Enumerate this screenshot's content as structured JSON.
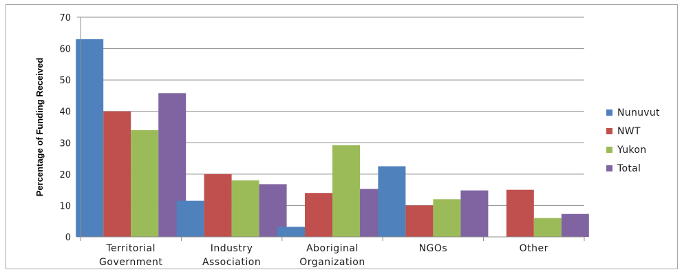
{
  "chart_data": {
    "type": "bar",
    "categories": [
      [
        "Territorial",
        "Government"
      ],
      [
        "Industry",
        "Association"
      ],
      [
        "Aboriginal",
        "Organization"
      ],
      [
        "NGOs"
      ],
      [
        "Other"
      ]
    ],
    "series": [
      {
        "name": "Nunuvut",
        "color": "#4f81bd",
        "values": [
          63,
          11.5,
          3.2,
          22.5,
          0
        ]
      },
      {
        "name": "NWT",
        "color": "#c0504d",
        "values": [
          40,
          20,
          14,
          10,
          15
        ]
      },
      {
        "name": "Yukon",
        "color": "#9bbb59",
        "values": [
          34,
          18,
          29.2,
          12,
          6
        ]
      },
      {
        "name": "Total",
        "color": "#8064a2",
        "values": [
          45.8,
          16.8,
          15.3,
          14.8,
          7.3
        ]
      }
    ],
    "ylabel": "Percentage of Funding Received",
    "xlabel": "",
    "ylim": [
      0,
      70
    ],
    "yticks": [
      0,
      10,
      20,
      30,
      40,
      50,
      60,
      70
    ],
    "grid": true,
    "legend_position": "right"
  }
}
